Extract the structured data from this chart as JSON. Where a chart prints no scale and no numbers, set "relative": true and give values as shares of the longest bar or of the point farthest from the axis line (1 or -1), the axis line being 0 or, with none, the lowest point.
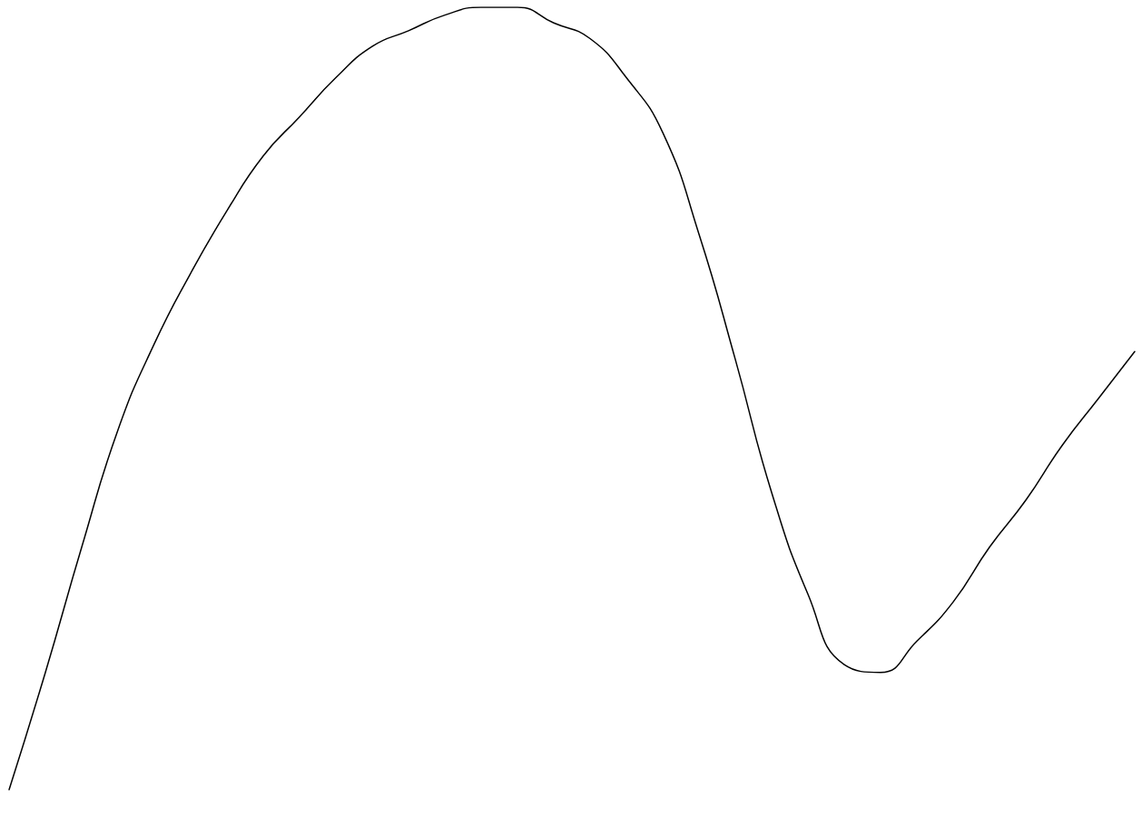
{
  "chart_data": {
    "type": "line",
    "relative": true,
    "categories": [
      null,
      null,
      null,
      null,
      null,
      null,
      null,
      null,
      null,
      null,
      null,
      null,
      null,
      null,
      null,
      null,
      null,
      null,
      null,
      null,
      null,
      null,
      null,
      null,
      null,
      null,
      null,
      null,
      null,
      null,
      null,
      null
    ],
    "series": [
      {
        "color": "#000000",
        "values": [
          0,
          0.15,
          0.31,
          0.46,
          0.57,
          0.66,
          0.74,
          0.81,
          0.86,
          0.91,
          0.95,
          0.97,
          0.99,
          1,
          1,
          0.98,
          0.96,
          0.91,
          0.84,
          0.71,
          0.55,
          0.38,
          0.25,
          0.16,
          0.15,
          0.19,
          0.24,
          0.31,
          0.37,
          0.44,
          0.5,
          0.56
        ]
      }
    ],
    "marker": "none",
    "line_style": "solid"
  }
}
